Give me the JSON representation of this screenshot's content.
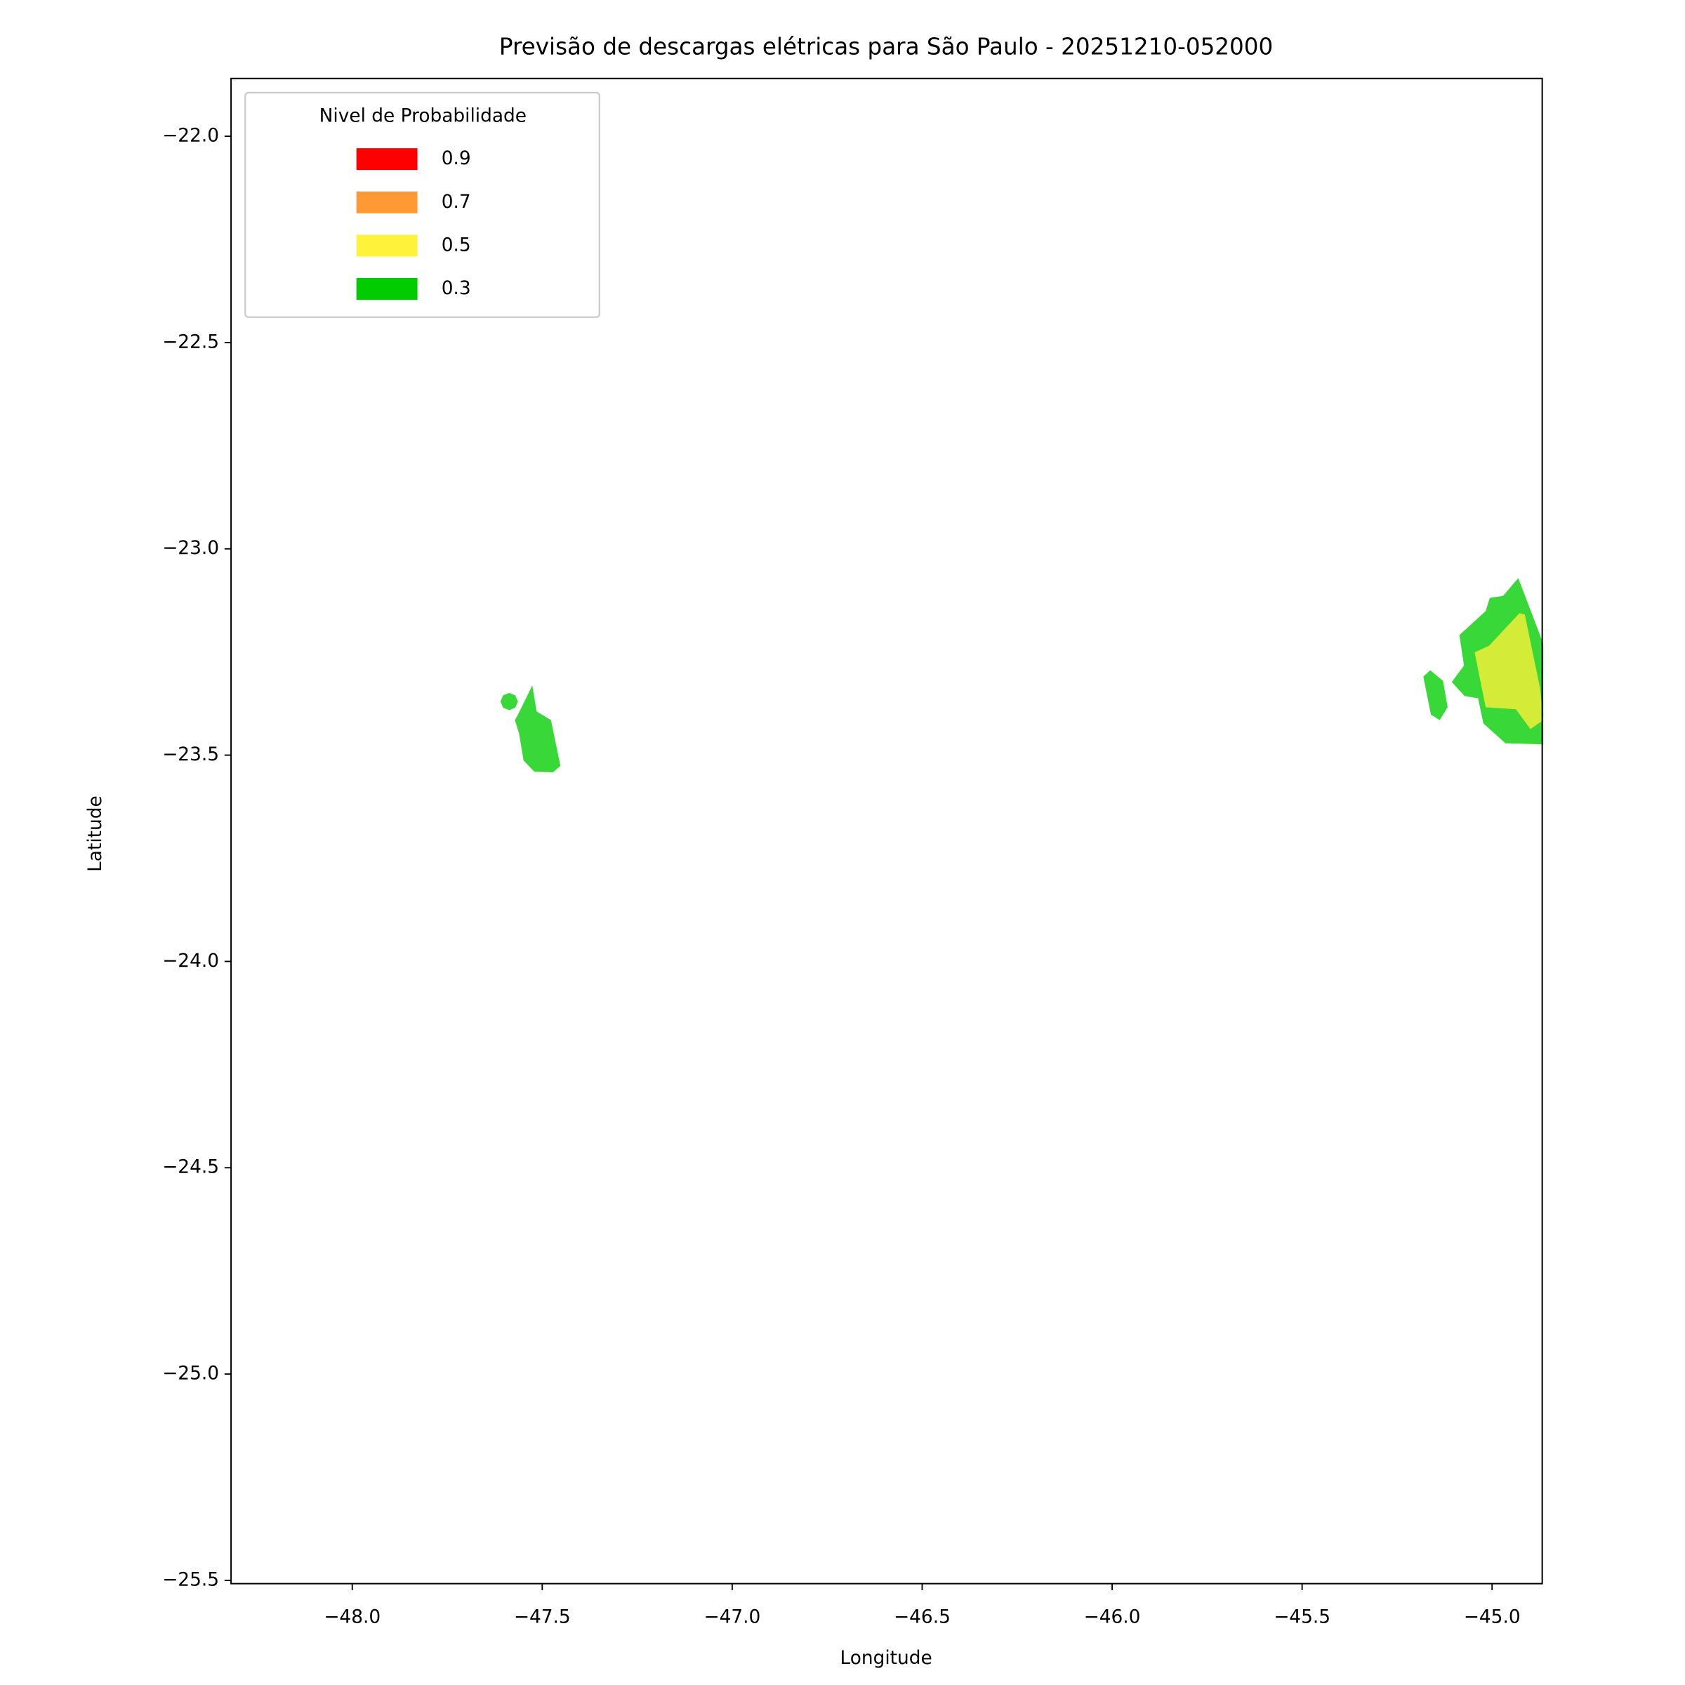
{
  "chart_data": {
    "type": "contour_map",
    "title": "Previsão de descargas elétricas para São Paulo - 20251210-052000",
    "x_label": "Longitude",
    "y_label": "Latitude",
    "xlim": [
      -48.319,
      -44.868
    ],
    "ylim": [
      -25.508,
      -21.86
    ],
    "xticks": [
      {
        "value": -48.0,
        "label": "−48.0"
      },
      {
        "value": -47.5,
        "label": "−47.5"
      },
      {
        "value": -47.0,
        "label": "−47.0"
      },
      {
        "value": -46.5,
        "label": "−46.5"
      },
      {
        "value": -46.0,
        "label": "−46.0"
      },
      {
        "value": -45.5,
        "label": "−45.5"
      },
      {
        "value": -45.0,
        "label": "−45.0"
      }
    ],
    "yticks": [
      {
        "value": -22.0,
        "label": "−22.0"
      },
      {
        "value": -22.5,
        "label": "−22.5"
      },
      {
        "value": -23.0,
        "label": "−23.0"
      },
      {
        "value": -23.5,
        "label": "−23.5"
      },
      {
        "value": -24.0,
        "label": "−24.0"
      },
      {
        "value": -24.5,
        "label": "−24.5"
      },
      {
        "value": -25.0,
        "label": "−25.0"
      },
      {
        "value": -25.5,
        "label": "−25.5"
      }
    ],
    "legend": {
      "title": "Nivel de Probabilidade",
      "location": "upper left",
      "entries": [
        {
          "name": "0.9",
          "color": "#ff0000"
        },
        {
          "name": "0.7",
          "color": "#ff9933"
        },
        {
          "name": "0.5",
          "color": "#fff23a"
        },
        {
          "name": "0.3",
          "color": "#00cc00"
        }
      ]
    },
    "regions": [
      {
        "color": "#38d838",
        "x": [
          -47.564,
          -47.526,
          -47.515,
          -47.477,
          -47.452,
          -47.472,
          -47.521,
          -47.549,
          -47.561,
          -47.572
        ],
        "y": [
          -23.402,
          -23.331,
          -23.394,
          -23.415,
          -23.526,
          -23.542,
          -23.54,
          -23.513,
          -23.447,
          -23.415
        ]
      },
      {
        "color": "#38d838",
        "x": [
          -47.587,
          -47.571,
          -47.564,
          -47.571,
          -47.587,
          -47.603,
          -47.61,
          -47.603
        ],
        "y": [
          -23.349,
          -23.355,
          -23.37,
          -23.385,
          -23.391,
          -23.385,
          -23.37,
          -23.355
        ]
      },
      {
        "color": "#38d838",
        "x": [
          -45.086,
          -45.017,
          -45.006,
          -44.971,
          -44.931,
          -44.865,
          -44.865,
          -44.965,
          -45.023,
          -45.037,
          -45.072,
          -45.106,
          -45.074
        ],
        "y": [
          -23.209,
          -23.151,
          -23.119,
          -23.114,
          -23.071,
          -23.23,
          -23.474,
          -23.471,
          -23.423,
          -23.362,
          -23.357,
          -23.323,
          -23.283
        ]
      },
      {
        "color": "#d4ec38",
        "x": [
          -45.046,
          -45.008,
          -44.928,
          -44.914,
          -44.874,
          -44.865,
          -44.899,
          -44.937,
          -45.017
        ],
        "y": [
          -23.251,
          -23.235,
          -23.156,
          -23.159,
          -23.336,
          -23.415,
          -23.437,
          -23.389,
          -23.384
        ]
      },
      {
        "color": "#38d838",
        "x": [
          -45.181,
          -45.163,
          -45.129,
          -45.117,
          -45.138,
          -45.161
        ],
        "y": [
          -23.31,
          -23.294,
          -23.32,
          -23.384,
          -23.415,
          -23.402
        ]
      }
    ]
  }
}
